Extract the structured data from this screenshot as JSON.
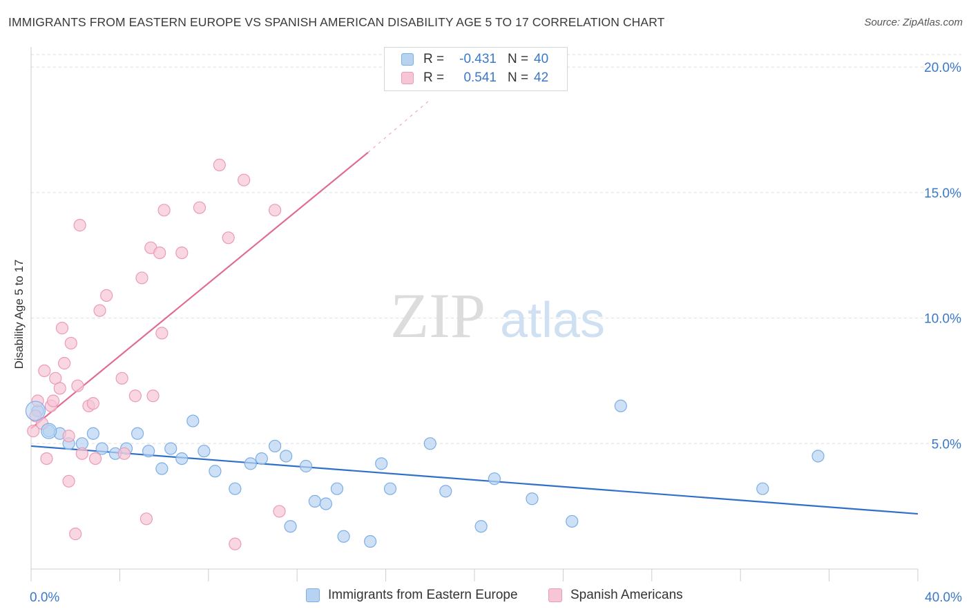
{
  "title": "IMMIGRANTS FROM EASTERN EUROPE VS SPANISH AMERICAN DISABILITY AGE 5 TO 17 CORRELATION CHART",
  "source": "Source: ZipAtlas.com",
  "watermark": {
    "zip": "ZIP",
    "atlas": "atlas"
  },
  "colors": {
    "blue_fill": "#b8d3f2",
    "blue_stroke": "#7aaee6",
    "blue_line": "#2f6fcc",
    "pink_fill": "#f7c6d6",
    "pink_stroke": "#ec9ab5",
    "pink_line": "#e06c93",
    "axis_text": "#3a78c9",
    "grid": "#dddddd"
  },
  "legend": {
    "rows": [
      {
        "r_label": "R =",
        "r_value": "-0.431",
        "n_label": "N =",
        "n_value": "40",
        "color": "#b8d3f2",
        "stroke": "#7aaee6"
      },
      {
        "r_label": "R =",
        "r_value": "0.541",
        "n_label": "N =",
        "n_value": "42",
        "color": "#f7c6d6",
        "stroke": "#ec9ab5"
      }
    ]
  },
  "chart_data": {
    "type": "scatter",
    "xlabel": "",
    "ylabel": "Disability Age 5 to 17",
    "xlim": [
      0,
      40
    ],
    "ylim": [
      0,
      20.5
    ],
    "x_ticks": [
      0,
      4,
      8,
      12,
      16,
      20,
      24,
      28,
      32,
      36,
      40
    ],
    "x_tick_labels": [
      {
        "value": 0,
        "label": "0.0%"
      },
      {
        "value": 40,
        "label": "40.0%"
      }
    ],
    "y_ticks": [
      {
        "value": 5,
        "label": "5.0%"
      },
      {
        "value": 10,
        "label": "10.0%"
      },
      {
        "value": 15,
        "label": "15.0%"
      },
      {
        "value": 20,
        "label": "20.0%"
      }
    ],
    "grid": true,
    "series": [
      {
        "name": "Immigrants from Eastern Europe",
        "color": "#b8d3f2",
        "points": [
          [
            0.3,
            6.3
          ],
          [
            0.8,
            5.5
          ],
          [
            1.3,
            5.4
          ],
          [
            1.7,
            5.0
          ],
          [
            2.3,
            5.0
          ],
          [
            2.8,
            5.4
          ],
          [
            3.2,
            4.8
          ],
          [
            3.8,
            4.6
          ],
          [
            4.3,
            4.8
          ],
          [
            4.8,
            5.4
          ],
          [
            5.3,
            4.7
          ],
          [
            5.9,
            4.0
          ],
          [
            6.3,
            4.8
          ],
          [
            6.8,
            4.4
          ],
          [
            7.3,
            5.9
          ],
          [
            7.8,
            4.7
          ],
          [
            8.3,
            3.9
          ],
          [
            9.2,
            3.2
          ],
          [
            9.9,
            4.2
          ],
          [
            10.4,
            4.4
          ],
          [
            11.0,
            4.9
          ],
          [
            11.5,
            4.5
          ],
          [
            11.7,
            1.7
          ],
          [
            12.4,
            4.1
          ],
          [
            12.8,
            2.7
          ],
          [
            13.3,
            2.6
          ],
          [
            13.8,
            3.2
          ],
          [
            14.1,
            1.3
          ],
          [
            15.3,
            1.1
          ],
          [
            15.8,
            4.2
          ],
          [
            16.2,
            3.2
          ],
          [
            18.0,
            5.0
          ],
          [
            18.7,
            3.1
          ],
          [
            20.3,
            1.7
          ],
          [
            20.9,
            3.6
          ],
          [
            22.6,
            2.8
          ],
          [
            24.4,
            1.9
          ],
          [
            26.6,
            6.5
          ],
          [
            33.0,
            3.2
          ],
          [
            35.5,
            4.5
          ]
        ],
        "trend": {
          "x": [
            0,
            40
          ],
          "y": [
            4.9,
            2.2
          ]
        }
      },
      {
        "name": "Spanish Americans",
        "color": "#f7c6d6",
        "points": [
          [
            0.1,
            5.5
          ],
          [
            0.2,
            6.1
          ],
          [
            0.3,
            6.7
          ],
          [
            0.5,
            5.8
          ],
          [
            0.6,
            7.9
          ],
          [
            0.7,
            4.4
          ],
          [
            0.9,
            6.5
          ],
          [
            1.0,
            6.7
          ],
          [
            1.1,
            7.6
          ],
          [
            1.3,
            7.2
          ],
          [
            1.4,
            9.6
          ],
          [
            1.5,
            8.2
          ],
          [
            1.7,
            5.3
          ],
          [
            1.7,
            3.5
          ],
          [
            1.8,
            9.0
          ],
          [
            2.0,
            1.4
          ],
          [
            2.1,
            7.3
          ],
          [
            2.2,
            13.7
          ],
          [
            2.3,
            4.6
          ],
          [
            2.6,
            6.5
          ],
          [
            2.8,
            6.6
          ],
          [
            2.9,
            4.4
          ],
          [
            3.1,
            10.3
          ],
          [
            3.4,
            10.9
          ],
          [
            4.1,
            7.6
          ],
          [
            4.2,
            4.6
          ],
          [
            4.7,
            6.9
          ],
          [
            5.0,
            11.6
          ],
          [
            5.2,
            2.0
          ],
          [
            5.4,
            12.8
          ],
          [
            5.5,
            6.9
          ],
          [
            5.8,
            12.6
          ],
          [
            5.9,
            9.4
          ],
          [
            6.0,
            14.3
          ],
          [
            6.8,
            12.6
          ],
          [
            7.6,
            14.4
          ],
          [
            8.5,
            16.1
          ],
          [
            8.9,
            13.2
          ],
          [
            9.2,
            1.0
          ],
          [
            9.6,
            15.5
          ],
          [
            11.0,
            14.3
          ],
          [
            11.2,
            2.3
          ]
        ],
        "trend": {
          "x": [
            0,
            15.2
          ],
          "y": [
            5.6,
            16.6
          ]
        },
        "trend_extension": {
          "x": [
            15.2,
            18.0
          ],
          "y": [
            16.6,
            18.7
          ]
        }
      }
    ]
  }
}
